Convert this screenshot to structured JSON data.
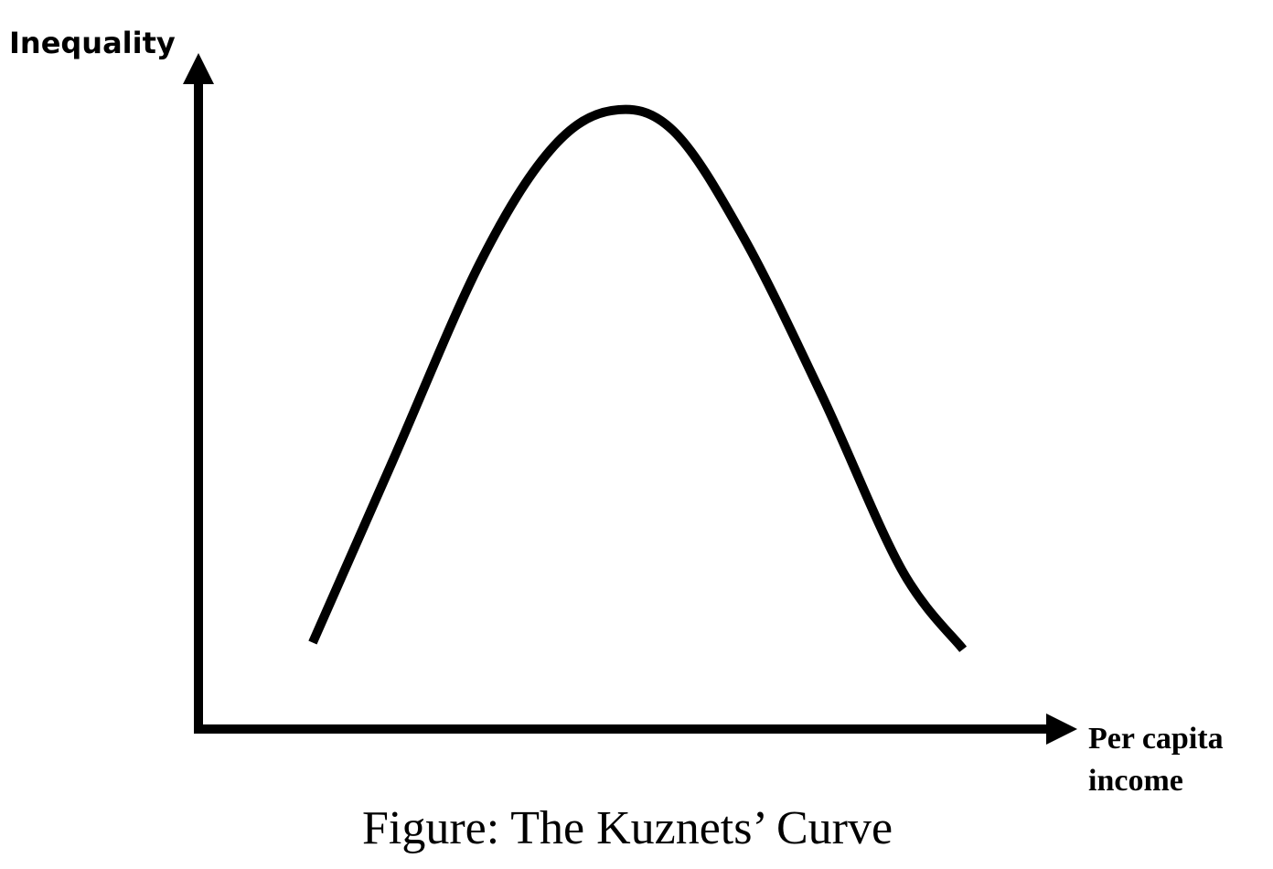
{
  "chart_data": {
    "type": "line",
    "title": "",
    "caption": "Figure: The Kuznets’ Curve",
    "ylabel": "Inequality",
    "xlabel_lines": [
      "Per capita",
      "income"
    ],
    "grid": false,
    "legend": "none",
    "series": [
      {
        "x": [
          0.13,
          0.22,
          0.32,
          0.4,
          0.47,
          0.54,
          0.62,
          0.71,
          0.8,
          0.87
        ],
        "y": [
          0.13,
          0.4,
          0.7,
          0.87,
          0.93,
          0.9,
          0.74,
          0.5,
          0.24,
          0.12
        ],
        "color": "#000000"
      }
    ],
    "xlim": [
      0,
      1
    ],
    "ylim": [
      0,
      1
    ]
  }
}
